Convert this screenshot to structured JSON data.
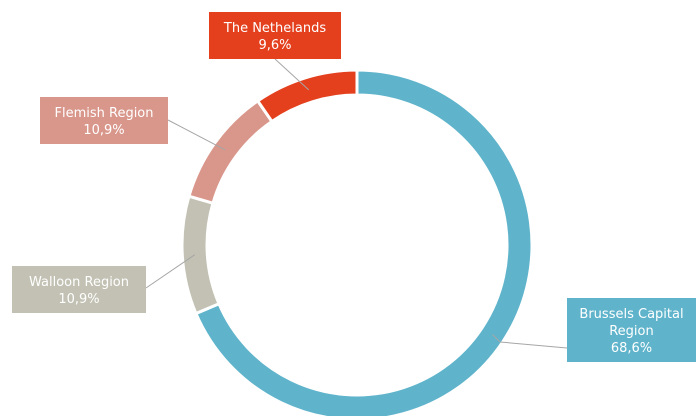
{
  "chart_data": {
    "type": "pie",
    "variant": "donut",
    "slices": [
      {
        "label_lines": [
          "Brussels Capital",
          "Region"
        ],
        "value_label": "68,6%",
        "value": 68.6,
        "color": "#5fb4cb"
      },
      {
        "label_lines": [
          "Walloon Region"
        ],
        "value_label": "10,9%",
        "value": 10.9,
        "color": "#c2c1b3"
      },
      {
        "label_lines": [
          "Flemish Region"
        ],
        "value_label": "10,9%",
        "value": 10.9,
        "color": "#d9968a"
      },
      {
        "label_lines": [
          "The Nethelands"
        ],
        "value_label": "9,6%",
        "value": 9.6,
        "color": "#e4401e"
      }
    ],
    "legend": "none",
    "labels": "callouts"
  }
}
